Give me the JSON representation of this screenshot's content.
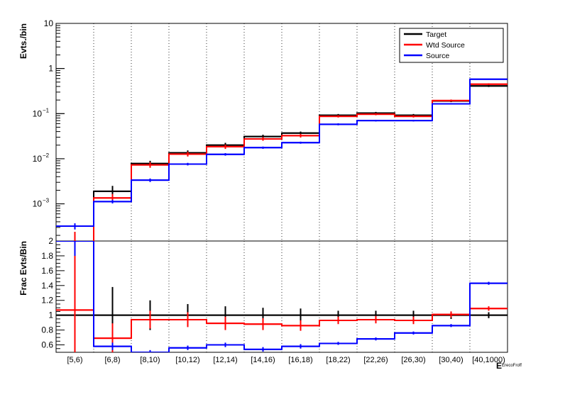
{
  "chart_data": [
    {
      "type": "line",
      "panel": "top",
      "ylabel": "Evts./bin",
      "yscale": "log",
      "ylim": [
        0.00015,
        10
      ],
      "y_ticks": [
        {
          "value": 10,
          "label": "10"
        },
        {
          "value": 1,
          "label": "1"
        },
        {
          "value": 0.1,
          "label": "10",
          "exp": "−1"
        },
        {
          "value": 0.01,
          "label": "10",
          "exp": "−2"
        },
        {
          "value": 0.001,
          "label": "10",
          "exp": "−3"
        }
      ],
      "categories": [
        "[5,6)",
        "[6,8)",
        "[8,10)",
        "[10,12)",
        "[12,14)",
        "[14,16)",
        "[16,18)",
        "[18,22)",
        "[22,26)",
        "[26,30)",
        "[30,40)",
        "[40,1000)"
      ],
      "legend_position": "top-right",
      "grid": "vertical dotted",
      "series": [
        {
          "name": "Target",
          "color": "#000000",
          "values": [
            0.00013,
            0.0019,
            0.0078,
            0.0135,
            0.02,
            0.031,
            0.037,
            0.092,
            0.103,
            0.092,
            0.19,
            0.41
          ],
          "errors": [
            0,
            0.0006,
            0.0012,
            0.0018,
            0.0025,
            0.003,
            0.003,
            0.006,
            0.006,
            0.006,
            0.01,
            0.02
          ]
        },
        {
          "name": "Wtd Source",
          "color": "#ff0000",
          "values": [
            0.00014,
            0.00135,
            0.0073,
            0.0127,
            0.0185,
            0.0275,
            0.0325,
            0.087,
            0.097,
            0.087,
            0.195,
            0.45
          ],
          "errors": [
            0.0001,
            0.0003,
            0.001,
            0.0015,
            0.002,
            0.0025,
            0.003,
            0.005,
            0.005,
            0.005,
            0.01,
            0.02
          ]
        },
        {
          "name": "Source",
          "color": "#0000ff",
          "values": [
            0.00032,
            0.00112,
            0.00335,
            0.0076,
            0.0125,
            0.0176,
            0.0227,
            0.058,
            0.07,
            0.07,
            0.165,
            0.58
          ],
          "errors": [
            5e-05,
            0.0001,
            0.0003,
            0.0005,
            0.0008,
            0.001,
            0.0012,
            0.003,
            0.003,
            0.003,
            0.006,
            0.015
          ]
        }
      ]
    },
    {
      "type": "line",
      "panel": "bottom",
      "ylabel": "Frac Evts/Bin",
      "ylim": [
        0.5,
        2.0
      ],
      "y_ticks": [
        0.6,
        0.8,
        1,
        1.2,
        1.4,
        1.6,
        1.8,
        2
      ],
      "categories": [
        "[5,6)",
        "[6,8)",
        "[8,10)",
        "[10,12)",
        "[12,14)",
        "[14,16)",
        "[16,18)",
        "[18,22)",
        "[22,26)",
        "[26,30)",
        "[30,40)",
        "[40,1000)"
      ],
      "xlabel": "E",
      "xlabel_sub": "ErecoFroff",
      "series": [
        {
          "name": "Target",
          "color": "#000000",
          "values": [
            1,
            1,
            1,
            1,
            1,
            1,
            1,
            1,
            1,
            1,
            1,
            1
          ],
          "errors": [
            0,
            0.38,
            0.2,
            0.15,
            0.12,
            0.1,
            0.09,
            0.06,
            0.06,
            0.06,
            0.05,
            0.04
          ]
        },
        {
          "name": "Wtd Source",
          "color": "#ff0000",
          "values": [
            1.07,
            0.69,
            0.94,
            0.94,
            0.89,
            0.88,
            0.86,
            0.93,
            0.94,
            0.93,
            1.01,
            1.09
          ],
          "errors": [
            1.0,
            0.2,
            0.12,
            0.1,
            0.09,
            0.08,
            0.07,
            0.05,
            0.05,
            0.05,
            0.04,
            0.03
          ]
        },
        {
          "name": "Source",
          "color": "#0000ff",
          "values": [
            2.0,
            0.58,
            0.5,
            0.56,
            0.6,
            0.54,
            0.58,
            0.62,
            0.68,
            0.76,
            0.86,
            1.43
          ],
          "errors": [
            0.2,
            0.05,
            0.03,
            0.03,
            0.03,
            0.03,
            0.03,
            0.02,
            0.02,
            0.02,
            0.02,
            0.02
          ]
        }
      ]
    }
  ]
}
